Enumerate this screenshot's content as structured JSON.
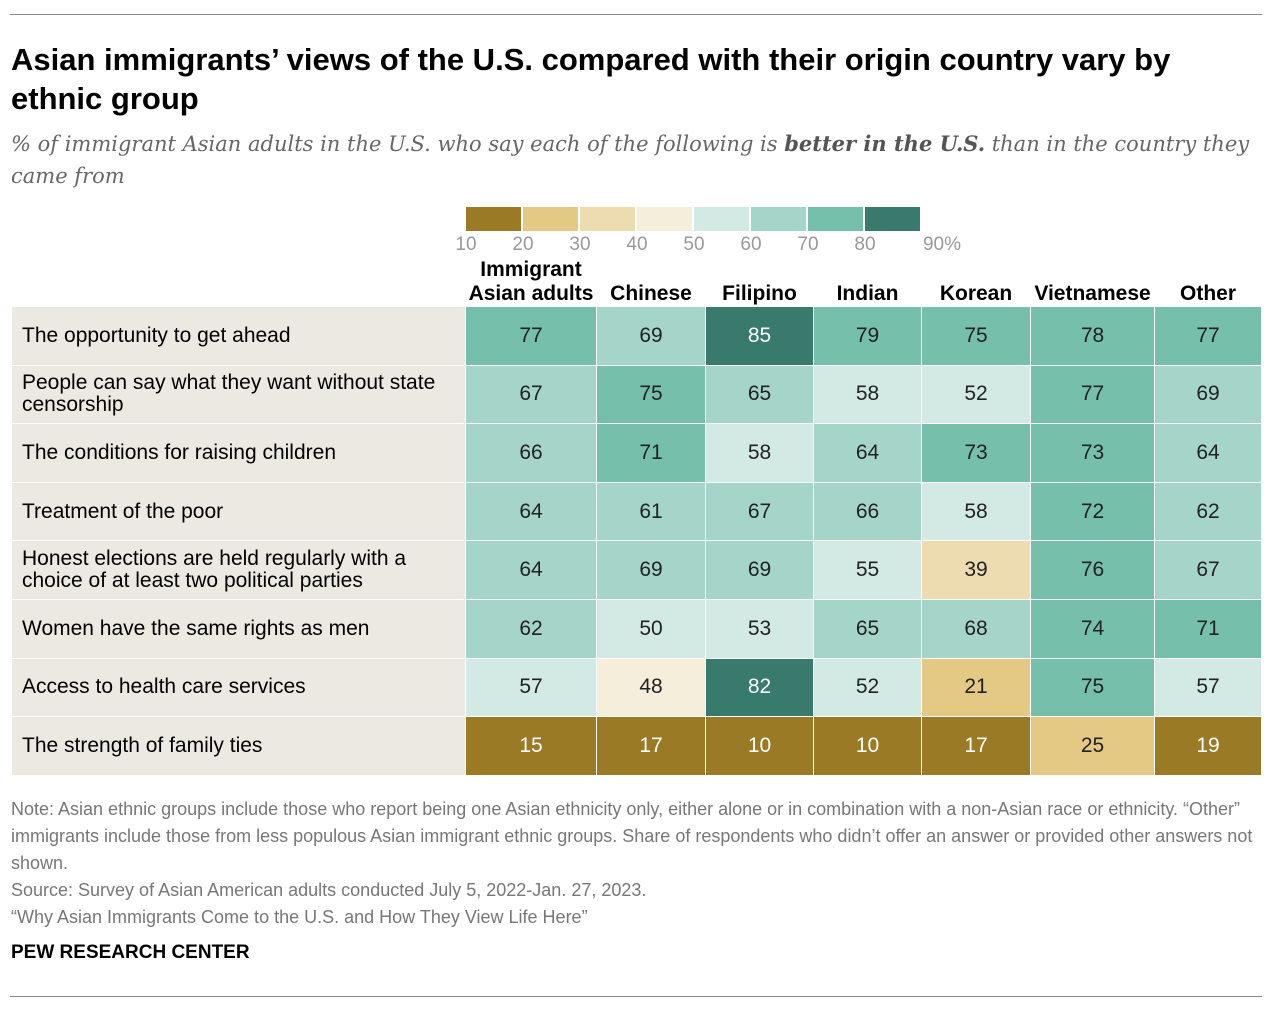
{
  "title": "Asian immigrants’ views of the U.S. compared with their origin country vary by ethnic group",
  "subtitle_pre": "% of immigrant Asian adults in the U.S. who say each of the following is ",
  "subtitle_bold": "better in the U.S.",
  "subtitle_post": " than in the country they came from",
  "chart_data": {
    "type": "heatmap",
    "legend": {
      "ticks": [
        "10",
        "20",
        "30",
        "40",
        "50",
        "60",
        "70",
        "80",
        "90%"
      ],
      "colors": [
        "#9a7a25",
        "#e4c985",
        "#eddcb0",
        "#f5eedb",
        "#d3eae4",
        "#a5d5c9",
        "#76bfab",
        "#387a6c"
      ]
    },
    "columns": [
      "Immigrant Asian adults",
      "Chinese",
      "Filipino",
      "Indian",
      "Korean",
      "Vietnamese",
      "Other"
    ],
    "rows": [
      {
        "label": "The opportunity to get ahead",
        "values": [
          77,
          69,
          85,
          79,
          75,
          78,
          77
        ]
      },
      {
        "label": "People can say what they want without state censorship",
        "values": [
          67,
          75,
          65,
          58,
          52,
          77,
          69
        ]
      },
      {
        "label": "The conditions for raising children",
        "values": [
          66,
          71,
          58,
          64,
          73,
          73,
          64
        ]
      },
      {
        "label": "Treatment of the poor",
        "values": [
          64,
          61,
          67,
          66,
          58,
          72,
          62
        ]
      },
      {
        "label": "Honest elections are held regularly with a choice of at least two political parties",
        "values": [
          64,
          69,
          69,
          55,
          39,
          76,
          67
        ]
      },
      {
        "label": "Women have the same rights as men",
        "values": [
          62,
          50,
          53,
          65,
          68,
          74,
          71
        ]
      },
      {
        "label": "Access to health care services",
        "values": [
          57,
          48,
          82,
          52,
          21,
          75,
          57
        ]
      },
      {
        "label": "The strength of family ties",
        "values": [
          15,
          17,
          10,
          10,
          17,
          25,
          19
        ]
      }
    ]
  },
  "footer": {
    "note": "Note: Asian ethnic groups include those who report being one Asian ethnicity only, either alone or in combination with a non-Asian race or ethnicity. “Other” immigrants include those from less populous Asian immigrant ethnic groups. Share of respondents who didn’t offer an answer or provided other answers not shown.",
    "source": "Source: Survey of Asian American adults conducted July 5, 2022-Jan. 27, 2023.",
    "report": "“Why Asian Immigrants Come to the U.S. and How They View Life Here”",
    "brand": "PEW RESEARCH CENTER"
  }
}
